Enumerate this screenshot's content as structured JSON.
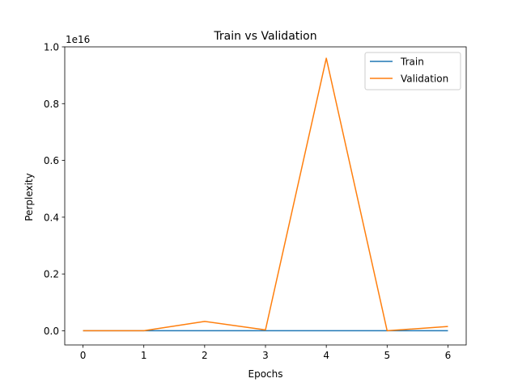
{
  "chart_data": {
    "type": "line",
    "title": "Train vs Validation",
    "xlabel": "Epochs",
    "ylabel": "Perplexity",
    "scale_label": "1e16",
    "x": [
      0,
      1,
      2,
      3,
      4,
      5,
      6
    ],
    "xlim": [
      -0.3,
      6.3
    ],
    "ylim": [
      -0.05,
      1.0
    ],
    "x_ticks": [
      0,
      1,
      2,
      3,
      4,
      5,
      6
    ],
    "y_ticks": [
      0.0,
      0.2,
      0.4,
      0.6,
      0.8,
      1.0
    ],
    "y_tick_labels": [
      "0.0",
      "0.2",
      "0.4",
      "0.6",
      "0.8",
      "1.0"
    ],
    "grid": false,
    "legend_position": "top-right",
    "series": [
      {
        "name": "Train",
        "color": "#1f77b4",
        "values": [
          0.0,
          0.0,
          0.0,
          0.0,
          0.0,
          0.0,
          0.0
        ]
      },
      {
        "name": "Validation",
        "color": "#ff7f0e",
        "values": [
          0.0,
          0.0,
          0.033,
          0.003,
          0.96,
          0.0,
          0.015
        ]
      }
    ]
  }
}
